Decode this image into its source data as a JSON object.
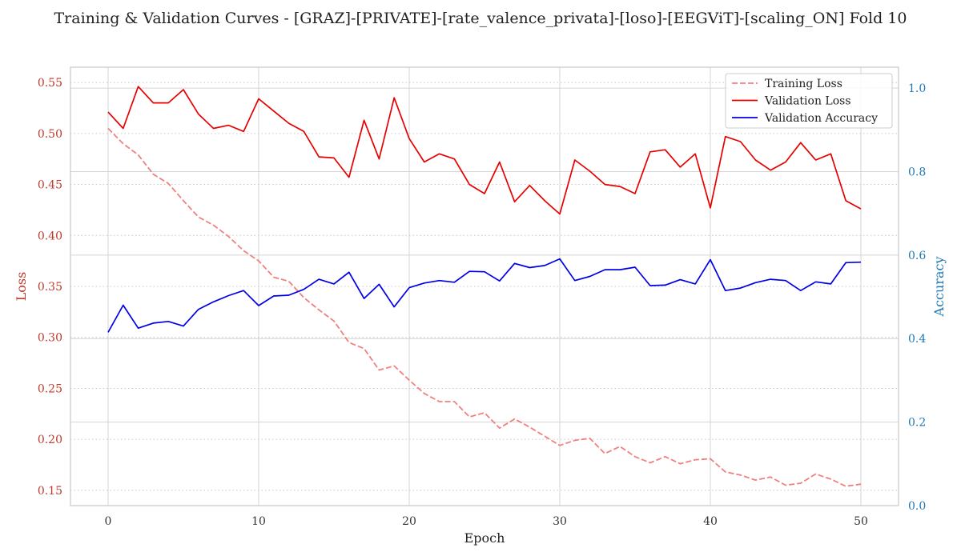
{
  "chart_data": {
    "type": "line",
    "title": "Training & Validation Curves - [GRAZ]-[PRIVATE]-[rate_valence_privata]-[loso]-[EEGViT]-[scaling_ON] Fold 10",
    "xlabel": "Epoch",
    "ylabel_left": "Loss",
    "ylabel_right": "Accuracy",
    "xlim": [
      -2.5,
      52.5
    ],
    "ylim_left": [
      0.135,
      0.565
    ],
    "ylim_right": [
      0.0,
      1.05
    ],
    "x_ticks": [
      0,
      10,
      20,
      30,
      40,
      50
    ],
    "y_left_ticks": [
      0.15,
      0.2,
      0.25,
      0.3,
      0.35,
      0.4,
      0.45,
      0.5,
      0.55
    ],
    "y_right_ticks": [
      0.0,
      0.2,
      0.4,
      0.6,
      0.8,
      1.0
    ],
    "legend_position": "top-right",
    "grid": true,
    "x": [
      0,
      1,
      2,
      3,
      4,
      5,
      6,
      7,
      8,
      9,
      10,
      11,
      12,
      13,
      14,
      15,
      16,
      17,
      18,
      19,
      20,
      21,
      22,
      23,
      24,
      25,
      26,
      27,
      28,
      29,
      30,
      31,
      32,
      33,
      34,
      35,
      36,
      37,
      38,
      39,
      40,
      41,
      42,
      43,
      44,
      45,
      46,
      47,
      48,
      49,
      50
    ],
    "series": [
      {
        "name": "Training Loss",
        "axis": "left",
        "color": "#f08080",
        "style": "dashed",
        "values": [
          0.505,
          0.49,
          0.479,
          0.46,
          0.451,
          0.434,
          0.418,
          0.41,
          0.399,
          0.385,
          0.375,
          0.359,
          0.355,
          0.339,
          0.327,
          0.316,
          0.295,
          0.289,
          0.268,
          0.272,
          0.258,
          0.245,
          0.237,
          0.237,
          0.222,
          0.226,
          0.211,
          0.22,
          0.212,
          0.203,
          0.194,
          0.199,
          0.201,
          0.186,
          0.193,
          0.183,
          0.177,
          0.183,
          0.176,
          0.18,
          0.181,
          0.168,
          0.165,
          0.16,
          0.163,
          0.155,
          0.157,
          0.166,
          0.161,
          0.154,
          0.156
        ]
      },
      {
        "name": "Validation Loss",
        "axis": "left",
        "color": "#e60000",
        "style": "solid",
        "values": [
          0.521,
          0.505,
          0.546,
          0.53,
          0.53,
          0.543,
          0.519,
          0.505,
          0.508,
          0.502,
          0.534,
          0.522,
          0.51,
          0.502,
          0.477,
          0.476,
          0.457,
          0.513,
          0.475,
          0.535,
          0.495,
          0.472,
          0.48,
          0.475,
          0.45,
          0.441,
          0.472,
          0.433,
          0.449,
          0.434,
          0.421,
          0.474,
          0.463,
          0.45,
          0.448,
          0.441,
          0.482,
          0.484,
          0.467,
          0.48,
          0.427,
          0.497,
          0.492,
          0.474,
          0.464,
          0.472,
          0.491,
          0.474,
          0.48,
          0.434,
          0.426
        ]
      },
      {
        "name": "Validation Accuracy",
        "axis": "right",
        "color": "#0000e6",
        "style": "solid",
        "values": [
          0.415,
          0.48,
          0.425,
          0.437,
          0.441,
          0.43,
          0.47,
          0.488,
          0.503,
          0.515,
          0.479,
          0.502,
          0.504,
          0.518,
          0.542,
          0.531,
          0.559,
          0.496,
          0.53,
          0.476,
          0.522,
          0.533,
          0.539,
          0.535,
          0.561,
          0.56,
          0.538,
          0.58,
          0.57,
          0.575,
          0.591,
          0.539,
          0.549,
          0.565,
          0.565,
          0.571,
          0.527,
          0.528,
          0.541,
          0.531,
          0.589,
          0.515,
          0.521,
          0.534,
          0.542,
          0.539,
          0.515,
          0.536,
          0.531,
          0.582,
          0.583
        ]
      }
    ]
  }
}
